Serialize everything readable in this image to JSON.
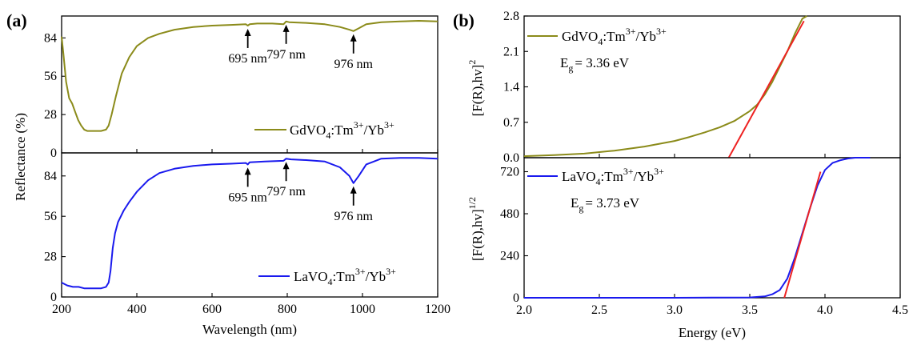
{
  "colors": {
    "gd": "#8b8b1a",
    "la": "#1a1aee",
    "fit": "#ee2222"
  },
  "panel_a": {
    "label": "(a)",
    "xlabel": "Wavelength (nm)",
    "ylabel": "Reflectance (%)"
  },
  "panel_b": {
    "label": "(b)",
    "xlabel": "Energy (eV)"
  },
  "chart_data": [
    {
      "type": "line",
      "panel": "a-top",
      "xlim": [
        200,
        1200
      ],
      "ylim": [
        0,
        100
      ],
      "yticks": [
        0,
        28,
        56,
        84
      ],
      "ytick_labels": [
        "0",
        "28",
        "56",
        "84"
      ],
      "legend": {
        "line1": "GdVO",
        "sub1": "4",
        "line2": ":Tm",
        "sup2": "3+",
        "line3": "/Yb",
        "sup3": "3+"
      },
      "annotations": [
        {
          "x": 695,
          "text": "695 nm"
        },
        {
          "x": 797,
          "text": "797 nm"
        },
        {
          "x": 976,
          "text": "976 nm"
        }
      ],
      "series": [
        {
          "color": "#8b8b1a",
          "x": [
            200,
            205,
            212,
            220,
            228,
            236,
            244,
            252,
            260,
            268,
            276,
            290,
            305,
            318,
            325,
            333,
            345,
            360,
            380,
            400,
            430,
            460,
            500,
            550,
            600,
            650,
            690,
            695,
            700,
            720,
            760,
            790,
            797,
            805,
            850,
            900,
            940,
            965,
            976,
            990,
            1010,
            1050,
            1100,
            1150,
            1200
          ],
          "y": [
            85,
            72,
            52,
            40,
            36,
            30,
            24,
            20,
            17,
            16,
            16,
            16,
            16,
            17,
            20,
            28,
            42,
            58,
            70,
            78,
            84,
            87,
            90,
            92,
            93,
            93.5,
            94,
            93,
            94,
            94.5,
            94.5,
            94,
            96,
            95.5,
            95,
            94,
            92,
            90,
            89,
            91,
            94,
            95.5,
            96,
            96.5,
            96
          ]
        }
      ]
    },
    {
      "type": "line",
      "panel": "a-bottom",
      "xlim": [
        200,
        1200
      ],
      "xticks": [
        200,
        400,
        600,
        800,
        1000,
        1200
      ],
      "xtick_labels": [
        "200",
        "400",
        "600",
        "800",
        "1000",
        "1200"
      ],
      "ylim": [
        0,
        100
      ],
      "yticks": [
        0,
        28,
        56,
        84
      ],
      "ytick_labels": [
        "0",
        "28",
        "56",
        "84"
      ],
      "legend": {
        "line1": "LaVO",
        "sub1": "4",
        "line2": ":Tm",
        "sup2": "3+",
        "line3": "/Yb",
        "sup3": "3+"
      },
      "annotations": [
        {
          "x": 695,
          "text": "695 nm"
        },
        {
          "x": 797,
          "text": "797 nm"
        },
        {
          "x": 976,
          "text": "976 nm"
        }
      ],
      "series": [
        {
          "color": "#1a1aee",
          "x": [
            200,
            215,
            230,
            245,
            260,
            275,
            290,
            305,
            318,
            325,
            330,
            336,
            342,
            350,
            365,
            380,
            400,
            430,
            460,
            500,
            550,
            600,
            650,
            690,
            695,
            700,
            740,
            790,
            797,
            810,
            850,
            900,
            940,
            965,
            976,
            990,
            1010,
            1050,
            1100,
            1150,
            1200
          ],
          "y": [
            10,
            8,
            7,
            7,
            6,
            6,
            6,
            6,
            7,
            10,
            18,
            34,
            44,
            52,
            60,
            66,
            73,
            81,
            86,
            89,
            91,
            92,
            92.5,
            93,
            92,
            93.5,
            94,
            94.5,
            96,
            95.5,
            95,
            94,
            90,
            84,
            79,
            84,
            92,
            96,
            96.5,
            96.5,
            96
          ]
        }
      ]
    },
    {
      "type": "line",
      "panel": "b-top",
      "xlim": [
        2.0,
        4.5
      ],
      "ylim": [
        0,
        2.8
      ],
      "yticks": [
        0,
        0.7,
        1.4,
        2.1,
        2.8
      ],
      "ytick_labels": [
        "0.0",
        "0.7",
        "1.4",
        "2.1",
        "2.8"
      ],
      "legend": {
        "line1": "GdVO",
        "sub1": "4",
        "line2": ":Tm",
        "sup2": "3+",
        "line3": "/Yb",
        "sup3": "3+"
      },
      "eg_text": {
        "pre": "E",
        "sub": "g",
        "post": "= 3.36 eV"
      },
      "ylabel": {
        "main": "[F(R),hv]",
        "sup": "2"
      },
      "series": [
        {
          "color": "#8b8b1a",
          "x": [
            2.0,
            2.2,
            2.4,
            2.6,
            2.8,
            3.0,
            3.1,
            3.2,
            3.3,
            3.4,
            3.5,
            3.55,
            3.6,
            3.65,
            3.7,
            3.75,
            3.8,
            3.85,
            3.88
          ],
          "y": [
            0.03,
            0.05,
            0.08,
            0.14,
            0.22,
            0.33,
            0.41,
            0.5,
            0.6,
            0.73,
            0.92,
            1.05,
            1.25,
            1.5,
            1.8,
            2.1,
            2.45,
            2.75,
            2.8
          ]
        }
      ],
      "fit": {
        "x": [
          3.36,
          3.86
        ],
        "y": [
          0,
          2.7
        ]
      }
    },
    {
      "type": "line",
      "panel": "b-bottom",
      "xlim": [
        2.0,
        4.5
      ],
      "xticks": [
        2.0,
        2.5,
        3.0,
        3.5,
        4.0,
        4.5
      ],
      "xtick_labels": [
        "2.0",
        "2.5",
        "3.0",
        "3.5",
        "4.0",
        "4.5"
      ],
      "ylim": [
        0,
        800
      ],
      "yticks": [
        0,
        240,
        480,
        720
      ],
      "ytick_labels": [
        "0",
        "240",
        "480",
        "720"
      ],
      "legend": {
        "line1": "LaVO",
        "sub1": "4",
        "line2": ":Tm",
        "sup2": "3+",
        "line3": "/Yb",
        "sup3": "3+"
      },
      "eg_text": {
        "pre": "E",
        "sub": "g",
        "post": "= 3.73 eV"
      },
      "ylabel": {
        "main": "[F(R),hv]",
        "sup": "1/2"
      },
      "series": [
        {
          "color": "#1a1aee",
          "x": [
            2.0,
            3.0,
            3.5,
            3.6,
            3.65,
            3.7,
            3.75,
            3.8,
            3.85,
            3.9,
            3.95,
            4.0,
            4.05,
            4.1,
            4.15,
            4.2,
            4.25,
            4.3
          ],
          "y": [
            0,
            0,
            2,
            8,
            20,
            45,
            110,
            230,
            370,
            510,
            640,
            730,
            770,
            785,
            795,
            800,
            800,
            800
          ]
        }
      ],
      "fit": {
        "x": [
          3.73,
          3.97
        ],
        "y": [
          0,
          720
        ]
      }
    }
  ]
}
